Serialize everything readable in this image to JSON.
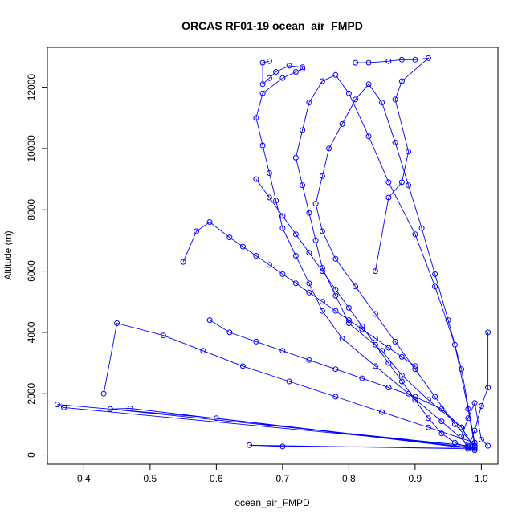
{
  "chart_data": {
    "type": "line+scatter",
    "title": "ORCAS RF01-19 ocean_air_FMPD",
    "xlabel": "ocean_air_FMPD",
    "ylabel": "Altitude (m)",
    "xlim": [
      0.345,
      1.025
    ],
    "ylim": [
      -300,
      13300
    ],
    "x_ticks": [
      0.4,
      0.5,
      0.6,
      0.7,
      0.8,
      0.9,
      1.0
    ],
    "x_tick_labels": [
      "0.4",
      "0.5",
      "0.6",
      "0.7",
      "0.8",
      "0.9",
      "1.0"
    ],
    "y_ticks": [
      0,
      2000,
      4000,
      6000,
      8000,
      10000,
      12000
    ],
    "y_tick_labels": [
      "0",
      "2000",
      "4000",
      "6000",
      "8000",
      "10000",
      "12000"
    ],
    "grid": false,
    "legend": "none",
    "series_color": "#0000ff",
    "series": [
      {
        "x": [
          0.99,
          0.97,
          0.92,
          0.88,
          0.85,
          0.8,
          0.78,
          0.76,
          0.75,
          0.74,
          0.73,
          0.72,
          0.73,
          0.74,
          0.76,
          0.78,
          0.8,
          0.83,
          0.86,
          0.9,
          0.93,
          0.96,
          0.98,
          0.99
        ],
        "y": [
          200,
          900,
          1800,
          2600,
          3400,
          4300,
          5200,
          6100,
          7000,
          7900,
          8800,
          9700,
          10600,
          11500,
          12200,
          12400,
          11800,
          10400,
          8900,
          7200,
          5500,
          3600,
          1500,
          300
        ]
      },
      {
        "x": [
          0.98,
          0.6,
          0.36,
          0.37,
          0.98,
          0.44,
          0.47,
          0.99,
          0.65,
          0.7,
          0.99
        ],
        "y": [
          250,
          1200,
          1650,
          1550,
          300,
          1500,
          1520,
          200,
          320,
          280,
          250
        ]
      },
      {
        "x": [
          0.99,
          0.94,
          0.89,
          0.84,
          0.79,
          0.76,
          0.74,
          0.72,
          0.7,
          0.69,
          0.68,
          0.67,
          0.66,
          0.67,
          0.7,
          0.72,
          0.73,
          0.73,
          0.71,
          0.69,
          0.68,
          0.67,
          0.67,
          0.68
        ],
        "y": [
          150,
          1100,
          2000,
          2900,
          3800,
          4700,
          5600,
          6500,
          7400,
          8300,
          9200,
          10100,
          11000,
          11800,
          12300,
          12500,
          12600,
          12650,
          12700,
          12500,
          12300,
          12100,
          12800,
          12850
        ]
      },
      {
        "x": [
          0.99,
          0.96,
          0.93,
          0.9,
          0.87,
          0.84,
          0.81,
          0.78,
          0.76,
          0.75,
          0.76,
          0.77,
          0.79,
          0.81,
          0.83,
          0.85,
          0.87,
          0.89,
          0.91,
          0.93,
          0.95,
          0.97,
          0.99
        ],
        "y": [
          300,
          1000,
          1900,
          2800,
          3700,
          4600,
          5500,
          6400,
          7300,
          8200,
          9100,
          10000,
          10800,
          11600,
          12100,
          11500,
          10200,
          8800,
          7400,
          5900,
          4400,
          2800,
          400
        ]
      },
      {
        "x": [
          0.55,
          0.57,
          0.59,
          0.62,
          0.64,
          0.66,
          0.68,
          0.7,
          0.72,
          0.74,
          0.76,
          0.78,
          0.8,
          0.82,
          0.84,
          0.86,
          0.88,
          0.9
        ],
        "y": [
          6300,
          7300,
          7600,
          7100,
          6800,
          6500,
          6200,
          5900,
          5600,
          5300,
          5000,
          4700,
          4400,
          4100,
          3800,
          3500,
          3200,
          2900
        ]
      },
      {
        "x": [
          0.81,
          0.83,
          0.86,
          0.88,
          0.9,
          0.92,
          0.88,
          0.87,
          0.89,
          0.88,
          0.86,
          0.84
        ],
        "y": [
          12800,
          12800,
          12850,
          12900,
          12900,
          12950,
          12200,
          11600,
          9900,
          8900,
          8400,
          6000
        ]
      },
      {
        "x": [
          0.99,
          0.92,
          0.85,
          0.78,
          0.71,
          0.64,
          0.58,
          0.52,
          0.45,
          0.43
        ],
        "y": [
          400,
          900,
          1400,
          1900,
          2400,
          2900,
          3400,
          3900,
          4300,
          2000
        ]
      },
      {
        "x": [
          1.01,
          1.01,
          1.0,
          0.99,
          0.98,
          0.97,
          0.98,
          0.99,
          1.0,
          1.01
        ],
        "y": [
          4000,
          2200,
          1600,
          800,
          200,
          600,
          1200,
          1700,
          500,
          300
        ]
      },
      {
        "x": [
          0.59,
          0.62,
          0.66,
          0.7,
          0.74,
          0.78,
          0.82,
          0.86,
          0.9,
          0.94,
          0.97,
          0.99
        ],
        "y": [
          4400,
          4000,
          3700,
          3400,
          3100,
          2800,
          2500,
          2200,
          1900,
          1500,
          900,
          200
        ]
      },
      {
        "x": [
          0.66,
          0.68,
          0.7,
          0.72,
          0.74,
          0.76,
          0.78,
          0.8,
          0.82,
          0.84,
          0.86,
          0.88,
          0.9,
          0.92,
          0.94,
          0.96,
          0.98
        ],
        "y": [
          9000,
          8400,
          7800,
          7200,
          6600,
          6000,
          5400,
          4800,
          4200,
          3600,
          3000,
          2400,
          1800,
          1200,
          700,
          400,
          250
        ]
      }
    ]
  }
}
